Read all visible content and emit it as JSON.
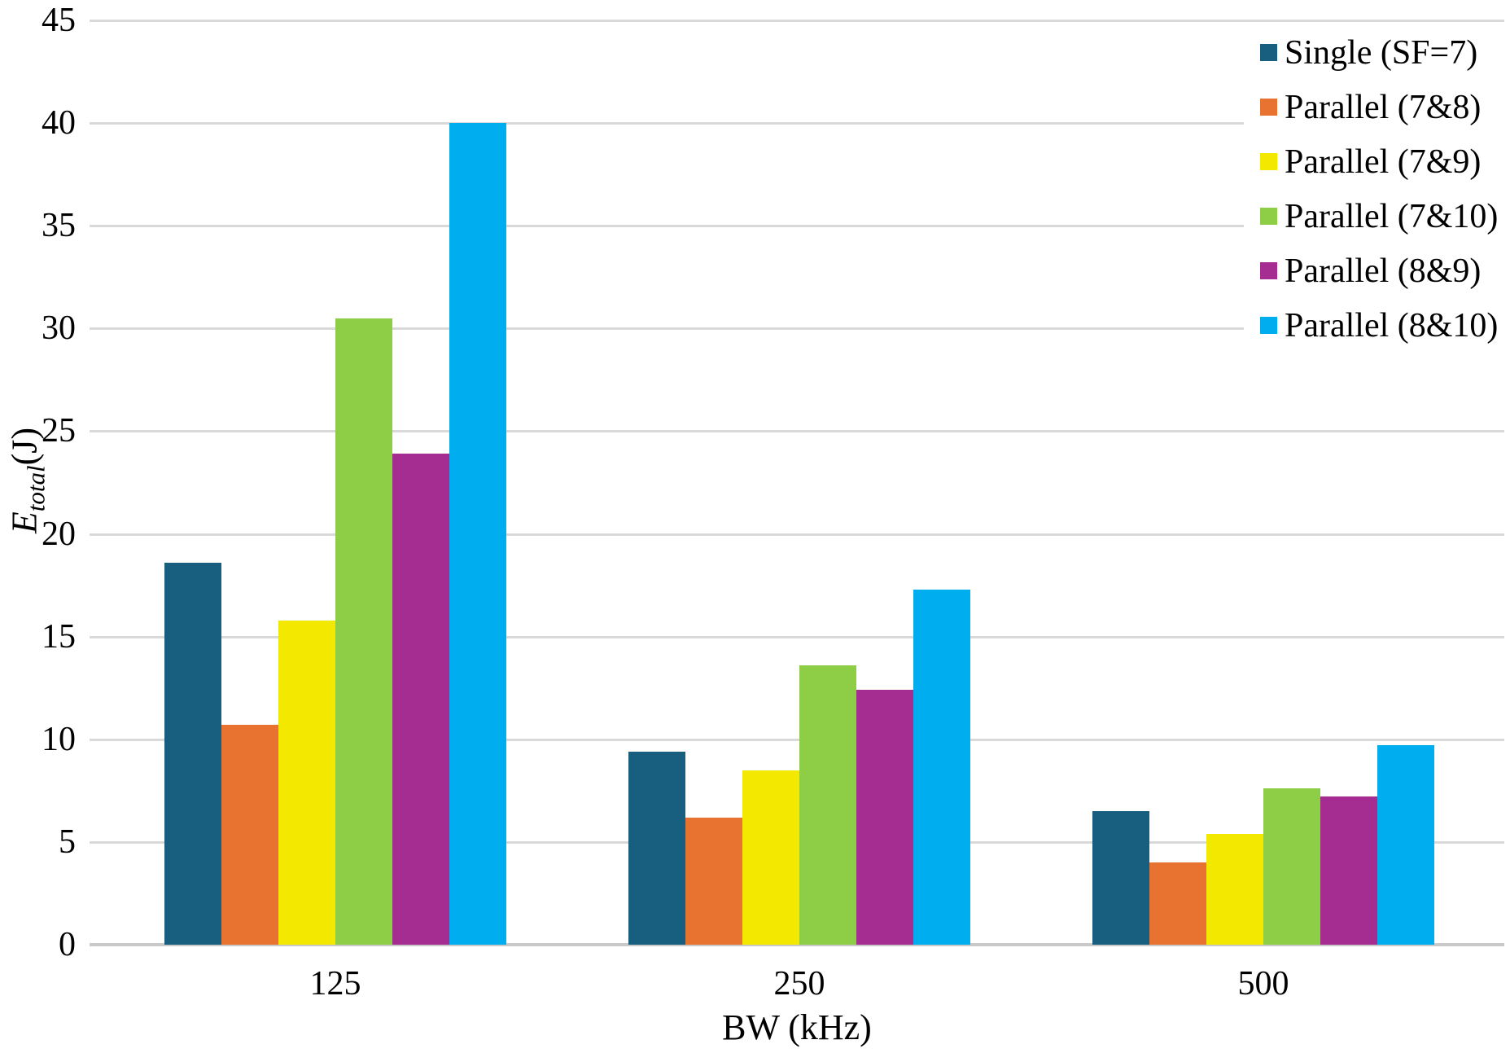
{
  "chart_data": {
    "type": "bar",
    "title": "",
    "xlabel": "BW (kHz)",
    "ylabel": {
      "symbol": "E",
      "subscript": "total",
      "unit": "(J)"
    },
    "categories": [
      "125",
      "250",
      "500"
    ],
    "series": [
      {
        "name": "Single (SF=7)",
        "color": "#175E7F",
        "values": [
          18.6,
          9.4,
          6.5
        ]
      },
      {
        "name": "Parallel (7&8)",
        "color": "#E8722F",
        "values": [
          10.7,
          6.2,
          4.0
        ]
      },
      {
        "name": "Parallel (7&9)",
        "color": "#F3E800",
        "values": [
          15.8,
          8.5,
          5.4
        ]
      },
      {
        "name": "Parallel (7&10)",
        "color": "#8DCE46",
        "values": [
          30.5,
          13.6,
          7.6
        ]
      },
      {
        "name": "Parallel (8&9)",
        "color": "#A52D92",
        "values": [
          23.9,
          12.4,
          7.2
        ]
      },
      {
        "name": "Parallel (8&10)",
        "color": "#00AEEF",
        "values": [
          40.0,
          17.3,
          9.7
        ]
      }
    ],
    "ylim": [
      0,
      45
    ],
    "ytick_step": 5,
    "yticks": [
      0,
      5,
      10,
      15,
      20,
      25,
      30,
      35,
      40,
      45
    ],
    "grid": true,
    "legend_position": "top-right",
    "colors": {
      "gridline": "#D9D9D9",
      "axis_line": "#C9C9C9",
      "text": "#000000",
      "background": "#FFFFFF"
    }
  }
}
